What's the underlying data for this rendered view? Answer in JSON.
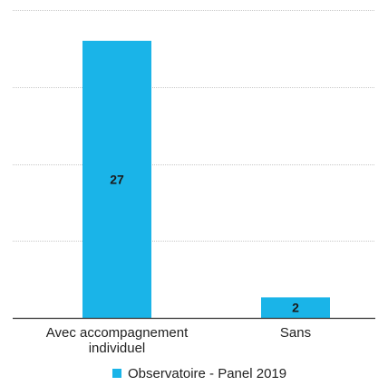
{
  "chart_data": {
    "type": "bar",
    "categories": [
      "Avec accompagnement individuel",
      "Sans"
    ],
    "category_label_lines": [
      [
        "Avec accompagnement",
        "individuel"
      ],
      [
        "Sans"
      ]
    ],
    "series": [
      {
        "name": "Observatoire - Panel 2019",
        "values": [
          27,
          2
        ]
      }
    ],
    "ylim": [
      0,
      30
    ],
    "yticks": [
      0,
      7.5,
      15,
      22.5,
      30
    ],
    "grid": true,
    "data_labels": true,
    "legend_position": "bottom",
    "bar_color": "#1ab4e8"
  }
}
